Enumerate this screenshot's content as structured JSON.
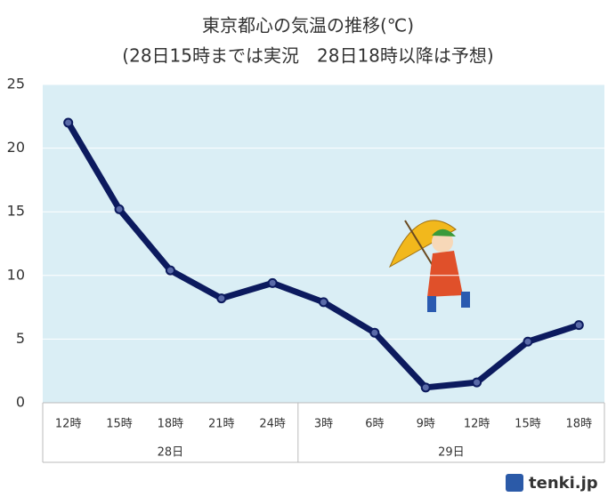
{
  "chart_data": {
    "type": "line",
    "title": "東京都心の気温の推移(℃)",
    "subtitle": "(28日15時までは実況　28日18時以降は予想)",
    "categories": [
      "12時",
      "15時",
      "18時",
      "21時",
      "24時",
      "3時",
      "6時",
      "9時",
      "12時",
      "15時",
      "18時"
    ],
    "groups": [
      {
        "label": "28日",
        "count": 5
      },
      {
        "label": "29日",
        "count": 6
      }
    ],
    "series": [
      {
        "name": "気温",
        "color": "#0c1a5e",
        "values": [
          22,
          15.2,
          10.4,
          8.2,
          9.4,
          7.9,
          5.5,
          1.2,
          1.6,
          4.8,
          6.1
        ]
      }
    ],
    "ylim": [
      0,
      25
    ],
    "yticks": [
      0,
      5,
      10,
      15,
      20,
      25
    ],
    "grid": true
  },
  "logo": "tenki.jp"
}
